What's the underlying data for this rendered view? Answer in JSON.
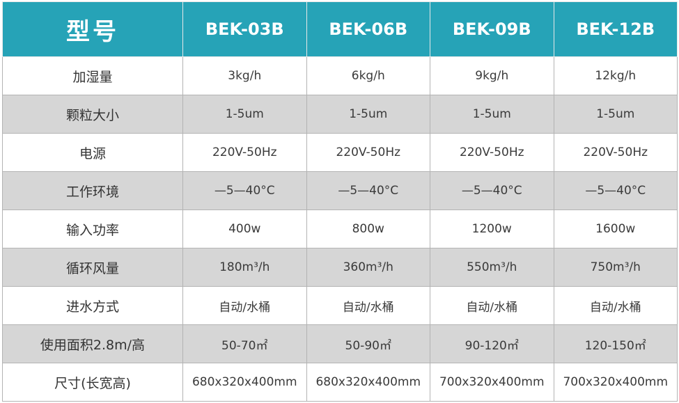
{
  "colors": {
    "header_bg": "#26a3b7",
    "alt_row_bg": "#d6d6d6"
  },
  "header": {
    "label": "型号",
    "models": [
      "BEK-03B",
      "BEK-06B",
      "BEK-09B",
      "BEK-12B"
    ]
  },
  "rows": [
    {
      "label": "加湿量",
      "values": [
        "3kg/h",
        "6kg/h",
        "9kg/h",
        "12kg/h"
      ]
    },
    {
      "label": "颗粒大小",
      "values": [
        "1-5um",
        "1-5um",
        "1-5um",
        "1-5um"
      ]
    },
    {
      "label": "电源",
      "values": [
        "220V-50Hz",
        "220V-50Hz",
        "220V-50Hz",
        "220V-50Hz"
      ]
    },
    {
      "label": "工作环境",
      "values": [
        "—5—40°C",
        "—5—40°C",
        "—5—40°C",
        "—5—40°C"
      ]
    },
    {
      "label": "输入功率",
      "values": [
        "400w",
        "800w",
        "1200w",
        "1600w"
      ]
    },
    {
      "label": "循环风量",
      "values": [
        "180m³/h",
        "360m³/h",
        "550m³/h",
        "750m³/h"
      ]
    },
    {
      "label": "进水方式",
      "values": [
        "自动/水桶",
        "自动/水桶",
        "自动/水桶",
        "自动/水桶"
      ]
    },
    {
      "label": "使用面积2.8m/高",
      "values": [
        "50-70㎡",
        "50-90㎡",
        "90-120㎡",
        "120-150㎡"
      ]
    },
    {
      "label": "尺寸(长宽高)",
      "values": [
        "680x320x400mm",
        "680x320x400mm",
        "700x320x400mm",
        "700x320x400mm"
      ]
    }
  ]
}
